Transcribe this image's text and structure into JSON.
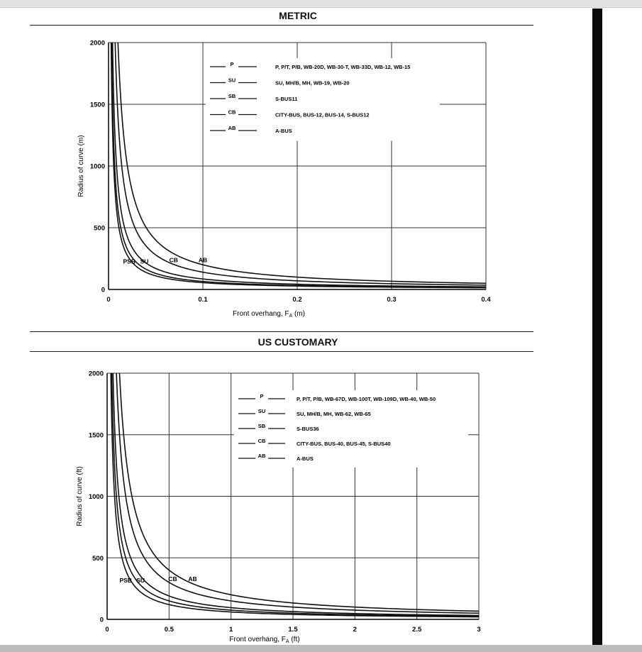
{
  "headings": {
    "metric": "METRIC",
    "us": "US CUSTOMARY"
  },
  "chart_data": [
    {
      "type": "line",
      "title": "METRIC",
      "xlabel": "Front overhang, F",
      "xlabel_sub": "A",
      "xlabel_unit": " (m)",
      "ylabel": "Radius of curve (m)",
      "xlim": [
        0,
        0.4
      ],
      "ylim": [
        0,
        2000
      ],
      "xticks": [
        0,
        0.1,
        0.2,
        0.3,
        0.4
      ],
      "xtick_labels": [
        "0",
        "0.1",
        "0.2",
        "0.3",
        "0.4"
      ],
      "yticks": [
        0,
        500,
        1000,
        1500,
        2000
      ],
      "ytick_labels": [
        "0",
        "500",
        "1000",
        "1500",
        "2000"
      ],
      "grid": true,
      "legend_position": "top-right",
      "series": [
        {
          "name": "P",
          "description": "P, P/T, P/B, WB-20D, WB-30-T, WB-33D, WB-12, WB-15",
          "k": 5.5,
          "x": [
            0.003,
            0.005,
            0.01,
            0.02,
            0.05,
            0.1,
            0.2,
            0.3,
            0.4
          ],
          "y": [
            1833,
            1100,
            550,
            275,
            110,
            55,
            28,
            18,
            14
          ]
        },
        {
          "name": "SB",
          "description": "S-BUS11",
          "k": 6.5,
          "x": [
            0.004,
            0.006,
            0.01,
            0.02,
            0.05,
            0.1,
            0.2,
            0.3,
            0.4
          ],
          "y": [
            1625,
            1083,
            650,
            325,
            130,
            65,
            33,
            22,
            16
          ]
        },
        {
          "name": "SU",
          "description": "SU, MH/B, MH, WB-19, WB-20",
          "k": 8.5,
          "x": [
            0.005,
            0.008,
            0.01,
            0.02,
            0.05,
            0.1,
            0.2,
            0.3,
            0.4
          ],
          "y": [
            1700,
            1063,
            850,
            425,
            170,
            85,
            43,
            28,
            21
          ]
        },
        {
          "name": "CB",
          "description": "CITY-BUS, BUS-12, BUS-14, S-BUS12",
          "k": 14,
          "x": [
            0.008,
            0.01,
            0.02,
            0.05,
            0.1,
            0.2,
            0.3,
            0.4
          ],
          "y": [
            1750,
            1400,
            700,
            280,
            140,
            70,
            47,
            35
          ]
        },
        {
          "name": "AB",
          "description": "A-BUS",
          "k": 20,
          "x": [
            0.011,
            0.015,
            0.02,
            0.05,
            0.1,
            0.2,
            0.3,
            0.4
          ],
          "y": [
            1818,
            1333,
            1000,
            400,
            200,
            100,
            67,
            50
          ]
        }
      ],
      "curve_labels": [
        {
          "text": "PSB",
          "x": 0.022,
          "y": 210
        },
        {
          "text": "SU",
          "x": 0.038,
          "y": 210
        },
        {
          "text": "CB",
          "x": 0.069,
          "y": 220
        },
        {
          "text": "AB",
          "x": 0.1,
          "y": 220
        }
      ]
    },
    {
      "type": "line",
      "title": "US CUSTOMARY",
      "xlabel": "Front overhang, F",
      "xlabel_sub": "A",
      "xlabel_unit": " (ft)",
      "ylabel": "Radius of curve (ft)",
      "xlim": [
        0,
        3
      ],
      "ylim": [
        0,
        2000
      ],
      "xticks": [
        0,
        0.5,
        1,
        1.5,
        2,
        2.5,
        3
      ],
      "xtick_labels": [
        "0",
        "0.5",
        "1",
        "1.5",
        "2",
        "2.5",
        "3"
      ],
      "yticks": [
        0,
        500,
        1000,
        1500,
        2000
      ],
      "ytick_labels": [
        "0",
        "500",
        "1000",
        "1500",
        "2000"
      ],
      "grid": true,
      "legend_position": "top-right",
      "series": [
        {
          "name": "P",
          "description": "P, P/T, P/B, WB-67D, WB-100T, WB-109D, WB-40, WB-50",
          "k": 60,
          "x": [
            0.03,
            0.05,
            0.1,
            0.2,
            0.5,
            1,
            1.5,
            2,
            2.5,
            3
          ],
          "y": [
            2000,
            1200,
            600,
            300,
            120,
            60,
            40,
            30,
            24,
            20
          ]
        },
        {
          "name": "SB",
          "description": "S-BUS36",
          "k": 75,
          "x": [
            0.04,
            0.06,
            0.1,
            0.2,
            0.5,
            1,
            1.5,
            2,
            2.5,
            3
          ],
          "y": [
            1875,
            1250,
            750,
            375,
            150,
            75,
            50,
            38,
            30,
            25
          ]
        },
        {
          "name": "SU",
          "description": "SU, MH/B, MH, WB-62, WB-65",
          "k": 95,
          "x": [
            0.05,
            0.08,
            0.1,
            0.2,
            0.5,
            1,
            1.5,
            2,
            2.5,
            3
          ],
          "y": [
            1900,
            1188,
            950,
            475,
            190,
            95,
            63,
            48,
            38,
            32
          ]
        },
        {
          "name": "CB",
          "description": "CITY-BUS, BUS-40, BUS-45, S-BUS40",
          "k": 150,
          "x": [
            0.08,
            0.1,
            0.2,
            0.5,
            1,
            1.5,
            2,
            2.5,
            3
          ],
          "y": [
            1875,
            1500,
            750,
            300,
            150,
            100,
            75,
            60,
            50
          ]
        },
        {
          "name": "AB",
          "description": "A-BUS",
          "k": 200,
          "x": [
            0.1,
            0.15,
            0.2,
            0.5,
            1,
            1.5,
            2,
            2.5,
            3
          ],
          "y": [
            2000,
            1333,
            1000,
            400,
            200,
            133,
            100,
            80,
            67
          ]
        }
      ],
      "curve_labels": [
        {
          "text": "PSB",
          "x": 0.15,
          "y": 300
        },
        {
          "text": "SU",
          "x": 0.27,
          "y": 300
        },
        {
          "text": "CB",
          "x": 0.53,
          "y": 310
        },
        {
          "text": "AB",
          "x": 0.69,
          "y": 310
        }
      ]
    }
  ]
}
